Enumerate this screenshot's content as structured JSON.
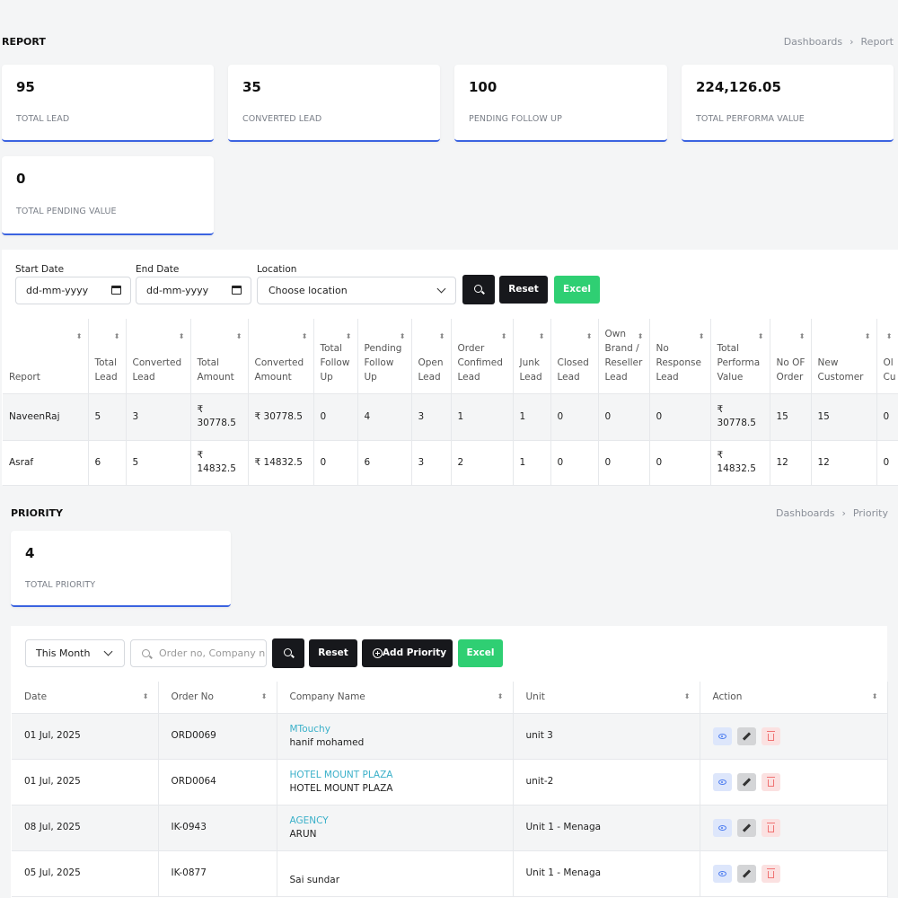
{
  "report": {
    "title": "REPORT",
    "breadcrumb": [
      "Dashboards",
      "Report"
    ],
    "stats": [
      {
        "value": "95",
        "label": "TOTAL LEAD"
      },
      {
        "value": "35",
        "label": "CONVERTED LEAD"
      },
      {
        "value": "100",
        "label": "PENDING FOLLOW UP"
      },
      {
        "value": "224,126.05",
        "label": "TOTAL PERFORMA VALUE"
      },
      {
        "value": "0",
        "label": "TOTAL PENDING VALUE"
      }
    ],
    "filters": {
      "start_date_label": "Start Date",
      "start_date_placeholder": "dd-mm-yyyy",
      "end_date_label": "End Date",
      "end_date_placeholder": "dd-mm-yyyy",
      "location_label": "Location",
      "location_value": "Choose location",
      "reset": "Reset",
      "excel": "Excel"
    },
    "columns": [
      "Report",
      "Total Lead",
      "Converted Lead",
      "Total Amount",
      "Converted Amount",
      "Total Follow Up",
      "Pending Follow Up",
      "Open Lead",
      "Order Confimed Lead",
      "Junk Lead",
      "Closed Lead",
      "Own Brand / Reseller Lead",
      "No Response Lead",
      "Total Performa Value",
      "No OF Order",
      "New Customer",
      "Ol Cu"
    ],
    "rows": [
      [
        "NaveenRaj",
        "5",
        "3",
        "₹ 30778.5",
        "₹ 30778.5",
        "0",
        "4",
        "3",
        "1",
        "1",
        "0",
        "0",
        "0",
        "₹ 30778.5",
        "15",
        "15",
        "0"
      ],
      [
        "Asraf",
        "6",
        "5",
        "₹ 14832.5",
        "₹ 14832.5",
        "0",
        "6",
        "3",
        "2",
        "1",
        "0",
        "0",
        "0",
        "₹ 14832.5",
        "12",
        "12",
        "0"
      ]
    ]
  },
  "priority": {
    "title": "PRIORITY",
    "breadcrumb": [
      "Dashboards",
      "Priority"
    ],
    "stat": {
      "value": "4",
      "label": "TOTAL PRIORITY"
    },
    "toolbar": {
      "period": "This Month",
      "search_placeholder": "Order no, Company n",
      "reset": "Reset",
      "add": "Add Priority",
      "excel": "Excel"
    },
    "columns": [
      "Date",
      "Order No",
      "Company Name",
      "Unit",
      "Action"
    ],
    "rows": [
      {
        "date": "01 Jul, 2025",
        "order": "ORD0069",
        "company": "MTouchy",
        "contact": "hanif mohamed",
        "unit": "unit 3"
      },
      {
        "date": "01 Jul, 2025",
        "order": "ORD0064",
        "company": "HOTEL MOUNT PLAZA",
        "contact": "HOTEL MOUNT PLAZA",
        "unit": "unit-2"
      },
      {
        "date": "08 Jul, 2025",
        "order": "IK-0943",
        "company": "AGENCY",
        "contact": "ARUN",
        "unit": "Unit 1 - Menaga"
      },
      {
        "date": "05 Jul, 2025",
        "order": "IK-0877",
        "company": "",
        "contact": "Sai sundar",
        "unit": "Unit 1 - Menaga"
      }
    ]
  },
  "colors": {
    "accent": "#3b63e0",
    "dark_button": "#17181c",
    "excel_button": "#2fcf73",
    "link": "#3ab0c9"
  }
}
